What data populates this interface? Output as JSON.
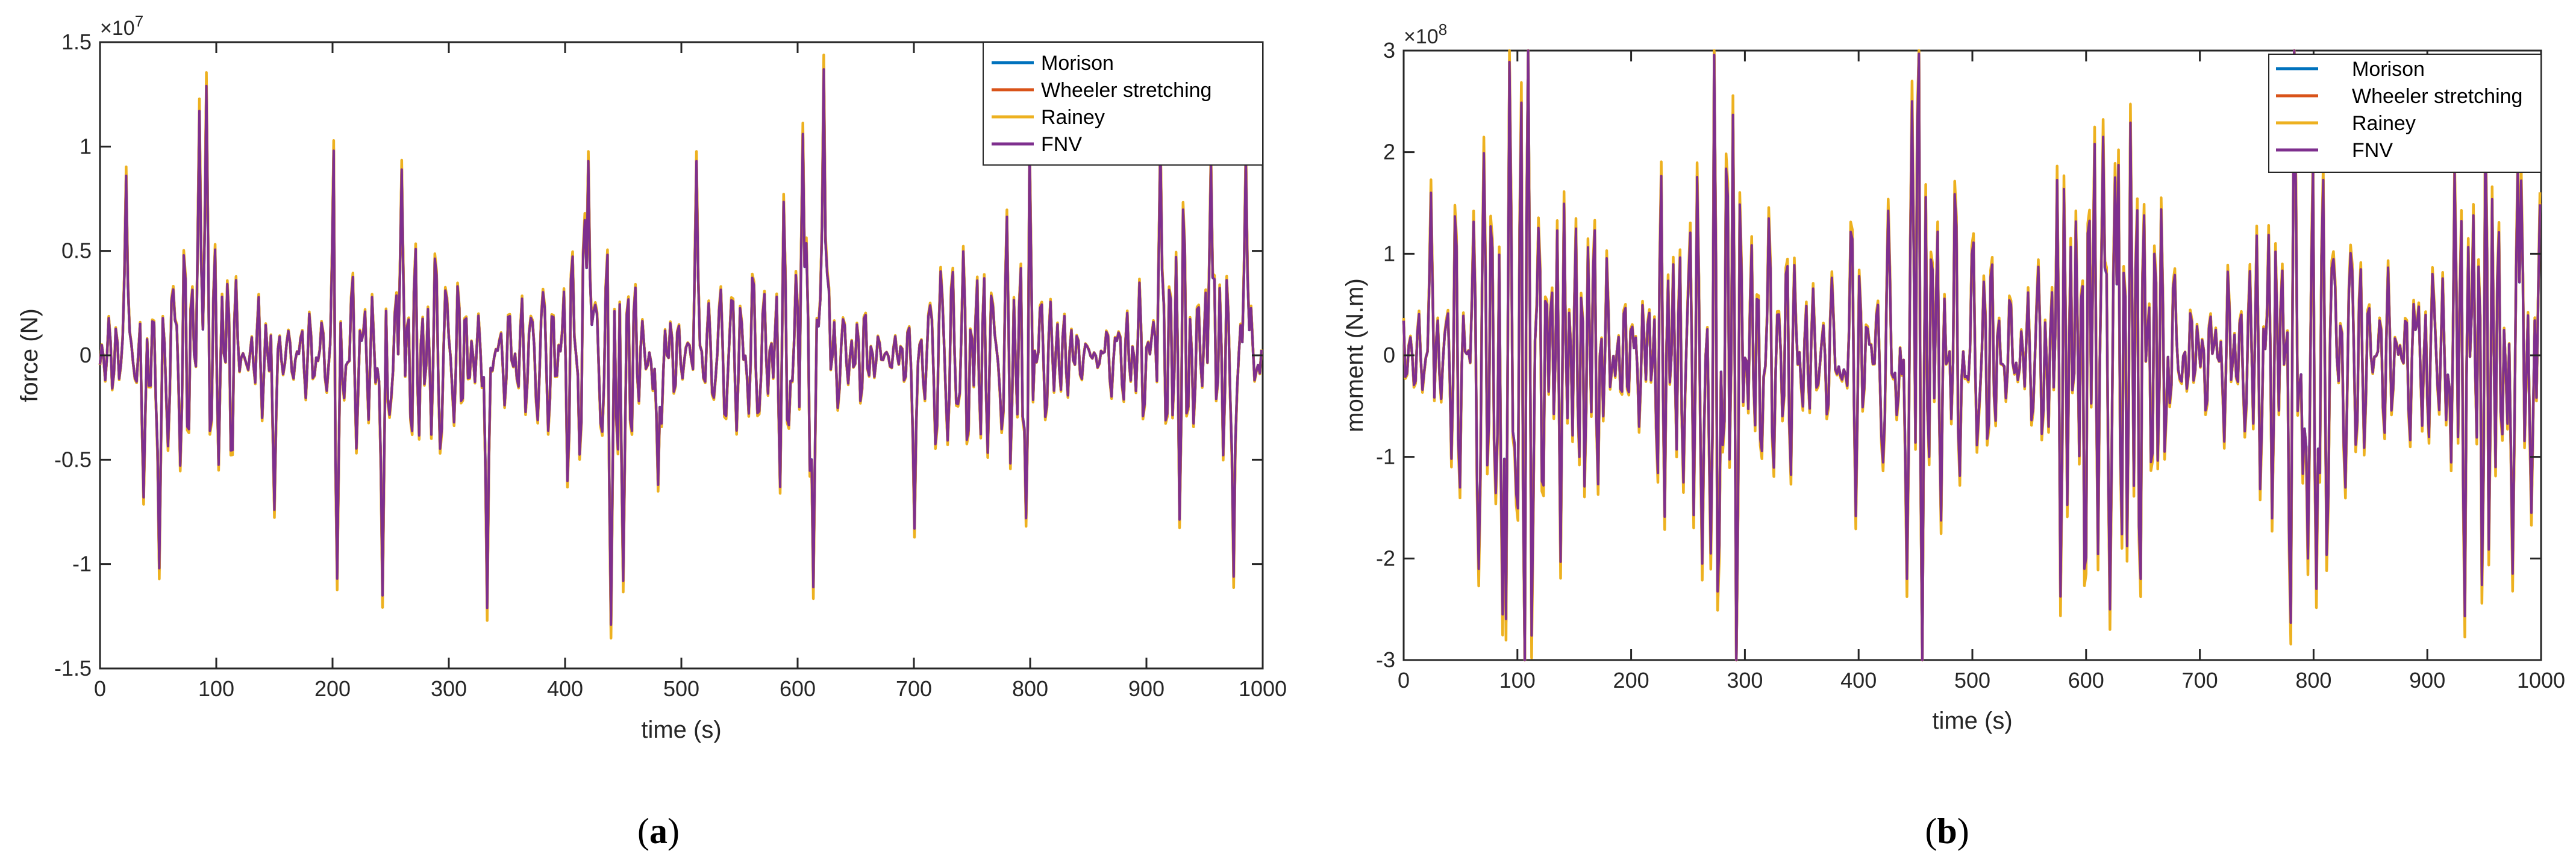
{
  "chart_data": [
    {
      "type": "line",
      "panel_label": "a",
      "xlabel": "time (s)",
      "ylabel": "force (N)",
      "y_exponent": "10",
      "y_exponent_power": "7",
      "xlim": [
        0,
        1000
      ],
      "ylim": [
        -1.5,
        1.5
      ],
      "xticks": [
        0,
        100,
        200,
        300,
        400,
        500,
        600,
        700,
        800,
        900,
        1000
      ],
      "yticks": [
        -1.5,
        -1,
        -0.5,
        0,
        0.5,
        1,
        1.5
      ],
      "ytick_labels": [
        "-1.5",
        "-1",
        "-0.5",
        "0",
        "0.5",
        "1",
        "1.5"
      ],
      "legend_position": "top-right",
      "series": [
        {
          "name": "Morison",
          "color": "#0072BD"
        },
        {
          "name": "Wheeler stretching",
          "color": "#D95319"
        },
        {
          "name": "Rainey",
          "color": "#EDB120"
        },
        {
          "name": "FNV",
          "color": "#7E2F8E"
        }
      ],
      "signal": {
        "sample_step_s": 1.5,
        "amplitude_scale": 0.42,
        "rainey_overshoot": 1.05,
        "peaks": [
          {
            "t": 23,
            "v": 0.86
          },
          {
            "t": 37,
            "v": -0.68
          },
          {
            "t": 51,
            "v": -1.02
          },
          {
            "t": 86,
            "v": 1.17
          },
          {
            "t": 91,
            "v": 1.29
          },
          {
            "t": 150,
            "v": -0.74
          },
          {
            "t": 201,
            "v": 0.98
          },
          {
            "t": 204,
            "v": -1.07
          },
          {
            "t": 243,
            "v": -1.15
          },
          {
            "t": 260,
            "v": 0.89
          },
          {
            "t": 333,
            "v": -1.21
          },
          {
            "t": 420,
            "v": 0.93
          },
          {
            "t": 440,
            "v": -1.29
          },
          {
            "t": 450,
            "v": -1.08
          },
          {
            "t": 480,
            "v": -0.62
          },
          {
            "t": 513,
            "v": 0.93
          },
          {
            "t": 605,
            "v": 1.06
          },
          {
            "t": 613,
            "v": -1.11
          },
          {
            "t": 622,
            "v": 1.37
          },
          {
            "t": 700,
            "v": -0.83
          },
          {
            "t": 800,
            "v": 1.0
          },
          {
            "t": 797,
            "v": -0.78
          },
          {
            "t": 912,
            "v": 1.02
          },
          {
            "t": 955,
            "v": 0.93
          },
          {
            "t": 975,
            "v": -1.06
          },
          {
            "t": 985,
            "v": 0.95
          }
        ]
      }
    },
    {
      "type": "line",
      "panel_label": "b",
      "xlabel": "time (s)",
      "ylabel": "moment (N.m)",
      "y_exponent": "10",
      "y_exponent_power": "8",
      "xlim": [
        0,
        1000
      ],
      "ylim": [
        -3,
        3
      ],
      "xticks": [
        0,
        100,
        200,
        300,
        400,
        500,
        600,
        700,
        800,
        900,
        1000
      ],
      "yticks": [
        -3,
        -2,
        -1,
        0,
        1,
        2,
        3
      ],
      "ytick_labels": [
        "-3",
        "-2",
        "-1",
        "0",
        "1",
        "2",
        "3"
      ],
      "legend_position": "top-right",
      "series": [
        {
          "name": "Morison",
          "color": "#0072BD"
        },
        {
          "name": "Wheeler stretching",
          "color": "#D95319"
        },
        {
          "name": "Rainey",
          "color": "#EDB120"
        },
        {
          "name": "FNV",
          "color": "#7E2F8E"
        }
      ],
      "signal": {
        "sample_step_s": 1.5,
        "amplitude_scale": 0.85,
        "rainey_overshoot": 1.08,
        "peaks": [
          {
            "t": 24,
            "v": 1.6
          },
          {
            "t": 86,
            "v": 2.2
          },
          {
            "t": 87,
            "v": -2.55
          },
          {
            "t": 263,
            "v": 2.35
          },
          {
            "t": 262,
            "v": -2.05
          },
          {
            "t": 270,
            "v": -1.95
          },
          {
            "t": 443,
            "v": -2.2
          },
          {
            "t": 447,
            "v": 2.5
          },
          {
            "t": 615,
            "v": 2.15
          },
          {
            "t": 621,
            "v": -2.5
          },
          {
            "t": 626,
            "v": 1.75
          },
          {
            "t": 795,
            "v": -2.0
          },
          {
            "t": 800,
            "v": 1.85
          },
          {
            "t": 803,
            "v": -2.3
          },
          {
            "t": 975,
            "v": -2.15
          },
          {
            "t": 980,
            "v": 1.8
          },
          {
            "t": 992,
            "v": -1.55
          }
        ]
      }
    }
  ]
}
